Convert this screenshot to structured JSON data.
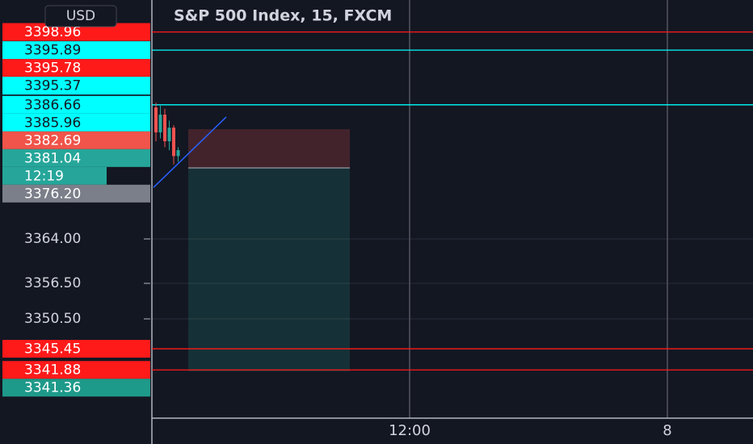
{
  "chart_data": {
    "type": "candlestick",
    "title": "S&P 500 Index, 15, FXCM",
    "currency": "USD",
    "ylim": [
      3333.73,
      3404.36
    ],
    "yticks": [
      {
        "value": 3364,
        "label": "3364.00"
      },
      {
        "value": 3356.5,
        "label": "3356.50"
      },
      {
        "value": 3350.5,
        "label": "3350.50"
      }
    ],
    "x_labels": [
      "12:00",
      "8"
    ],
    "grid": true,
    "candles": {
      "open": [
        3386.2,
        3382.0,
        3385.0,
        3380.5,
        3382.8,
        3378.0
      ],
      "high": [
        3387.0,
        3386.5,
        3386.0,
        3384.0,
        3383.2,
        3379.5
      ],
      "low": [
        3380.5,
        3381.0,
        3379.5,
        3379.0,
        3376.6,
        3377.0
      ],
      "close": [
        3382.0,
        3385.0,
        3380.5,
        3382.8,
        3378.0,
        3379.0
      ],
      "up_color": "#26a69a",
      "down_color": "#ef5350"
    },
    "trendline": [
      3372.7,
      3384.6
    ],
    "position": {
      "stop": 3382.55,
      "entry": 3376.0,
      "target": 3341.64
    },
    "price_labels": [
      {
        "value": 3398.96,
        "label": "3398.96",
        "color": "#ff1a1a",
        "text_color": "#ffffff",
        "line": true
      },
      {
        "value": 3395.89,
        "label": "3395.89",
        "color": "#00ffff",
        "text_color": "#131722",
        "line": true
      },
      {
        "value": 3395.78,
        "label": "3395.78",
        "color": "#ff1a1a",
        "text_color": "#ffffff",
        "line": false
      },
      {
        "value": 3395.37,
        "label": "3395.37",
        "color": "#00ffff",
        "text_color": "#131722",
        "line": false
      },
      {
        "value": 3386.66,
        "label": "3386.66",
        "color": "#00ffff",
        "text_color": "#131722",
        "line": true
      },
      {
        "value": 3385.96,
        "label": "3385.96",
        "color": "#00ffff",
        "text_color": "#131722",
        "line": false
      },
      {
        "value": 3382.69,
        "label": "3382.69",
        "color": "#f0544a",
        "text_color": "#ffffff",
        "line": false
      },
      {
        "value": 3381.04,
        "label": "3381.04",
        "color": "#26a69a",
        "text_color": "#ffffff",
        "line": false
      },
      {
        "value": 3378.6,
        "label": "12:19",
        "color": "#26a69a",
        "text_color": "#ffffff",
        "line": false
      },
      {
        "value": 3376.2,
        "label": "3376.20",
        "color": "#7b7f89",
        "text_color": "#ffffff",
        "line": false
      },
      {
        "value": 3345.45,
        "label": "3345.45",
        "color": "#ff1a1a",
        "text_color": "#ffffff",
        "line": true
      },
      {
        "value": 3341.88,
        "label": "3341.88",
        "color": "#ff1a1a",
        "text_color": "#ffffff",
        "line": true
      },
      {
        "value": 3341.36,
        "label": "3341.36",
        "color": "#1e9a8a",
        "text_color": "#ffffff",
        "line": false
      }
    ]
  }
}
